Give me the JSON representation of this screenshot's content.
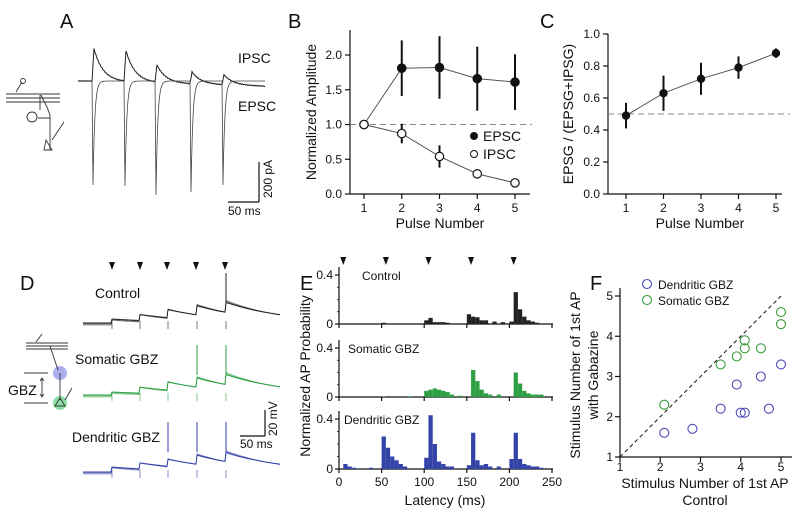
{
  "panels": {
    "A": "A",
    "B": "B",
    "C": "C",
    "D": "D",
    "E": "E",
    "F": "F"
  },
  "panel_a": {
    "ipsc_label": "IPSC",
    "epsc_label": "EPSC",
    "scale_y": "200 pA",
    "scale_x": "50 ms"
  },
  "panel_d": {
    "control_label": "Control",
    "somatic_label": "Somatic GBZ",
    "dendritic_label": "Dendritic GBZ",
    "gbz_label": "GBZ",
    "scale_y": "20 mV",
    "scale_x": "50 ms"
  },
  "colors": {
    "control": "#222222",
    "somatic": "#2ea043",
    "dendritic": "#3343a8",
    "f_dendritic": "#4b4bb8",
    "f_somatic": "#3c9c3c"
  },
  "chart_data": [
    {
      "id": "B",
      "type": "line",
      "xlabel": "Pulse Number",
      "ylabel": "Normalized Amplitude",
      "x": [
        1,
        2,
        3,
        4,
        5
      ],
      "xticks": [
        "1",
        "2",
        "3",
        "4",
        "5"
      ],
      "ylim": [
        0,
        2.3
      ],
      "yticks": [
        "0.0",
        "0.5",
        "1.0",
        "1.5",
        "2.0"
      ],
      "reference_line": 1.0,
      "legend_position": "right",
      "series": [
        {
          "name": "EPSC",
          "marker": "filled",
          "values": [
            1.0,
            1.81,
            1.82,
            1.66,
            1.61
          ],
          "errors": [
            0,
            0.4,
            0.45,
            0.46,
            0.4
          ]
        },
        {
          "name": "IPSC",
          "marker": "open",
          "values": [
            1.0,
            0.87,
            0.54,
            0.29,
            0.16
          ],
          "errors": [
            0,
            0.14,
            0.16,
            0.06,
            0.02
          ]
        }
      ]
    },
    {
      "id": "C",
      "type": "line",
      "xlabel": "Pulse Number",
      "ylabel": "EPSG / (EPSG+IPSG)",
      "x": [
        1,
        2,
        3,
        4,
        5
      ],
      "xticks": [
        "1",
        "2",
        "3",
        "4",
        "5"
      ],
      "ylim": [
        0,
        1.0
      ],
      "yticks": [
        "0.0",
        "0.2",
        "0.4",
        "0.6",
        "0.8",
        "1.0"
      ],
      "reference_line": 0.5,
      "series": [
        {
          "name": "ratio",
          "values": [
            0.49,
            0.63,
            0.72,
            0.79,
            0.88
          ],
          "errors": [
            0.08,
            0.11,
            0.1,
            0.07,
            0.03
          ]
        }
      ]
    },
    {
      "id": "E",
      "type": "bar",
      "xlabel": "Latency (ms)",
      "ylabel": "Normalized AP Probability",
      "xlim": [
        0,
        250
      ],
      "bin_ms": 5,
      "xticks": [
        "0",
        "50",
        "100",
        "150",
        "200",
        "250"
      ],
      "ylim": [
        0,
        0.45
      ],
      "yticks": [
        "0",
        "0.4"
      ],
      "stimulus_times_ms": [
        5,
        55,
        105,
        155,
        205
      ],
      "series": [
        {
          "name": "Control",
          "values": [
            0,
            0,
            0,
            0,
            0,
            0,
            0,
            0,
            0,
            0,
            0.01,
            0,
            0,
            0,
            0,
            0,
            0,
            0,
            0,
            0,
            0.03,
            0.05,
            0.015,
            0.015,
            0.015,
            0.01,
            0,
            0,
            0,
            0,
            0.08,
            0.06,
            0.055,
            0.03,
            0.03,
            0,
            0.02,
            0,
            0.015,
            0,
            0.02,
            0.26,
            0.12,
            0.06,
            0.03,
            0.02,
            0.01,
            0,
            0,
            0
          ]
        },
        {
          "name": "Somatic GBZ",
          "values": [
            0,
            0,
            0,
            0,
            0,
            0,
            0,
            0,
            0,
            0,
            0.005,
            0,
            0,
            0,
            0,
            0,
            0.005,
            0,
            0,
            0,
            0.05,
            0.06,
            0.07,
            0.06,
            0.05,
            0.04,
            0.02,
            0,
            0.01,
            0,
            0,
            0.22,
            0.13,
            0.06,
            0.03,
            0.02,
            0,
            0.02,
            0,
            0,
            0,
            0.2,
            0.11,
            0.05,
            0.03,
            0.02,
            0.02,
            0.02,
            0,
            0
          ]
        },
        {
          "name": "Dendritic GBZ",
          "values": [
            0,
            0.04,
            0.02,
            0.01,
            0.005,
            0,
            0,
            0.01,
            0,
            0,
            0.26,
            0.17,
            0.1,
            0.07,
            0.04,
            0.02,
            0,
            0,
            0,
            0,
            0.09,
            0.43,
            0.2,
            0.06,
            0.04,
            0.02,
            0.02,
            0,
            0,
            0,
            0.03,
            0.29,
            0.07,
            0.03,
            0.04,
            0.02,
            0,
            0.02,
            0,
            0,
            0.08,
            0.29,
            0.08,
            0.04,
            0.03,
            0.02,
            0.02,
            0.01,
            0,
            0
          ]
        }
      ]
    },
    {
      "id": "F",
      "type": "scatter",
      "xlabel": "Stimulus Number of 1st AP",
      "xlabel2": "Control",
      "ylabel": "Stimulus Number of 1st AP",
      "ylabel2": "with Gabazine",
      "xlim": [
        1,
        5.3
      ],
      "ylim": [
        1,
        5.3
      ],
      "xticks": [
        "1",
        "2",
        "3",
        "4",
        "5"
      ],
      "yticks": [
        "1",
        "2",
        "3",
        "4",
        "5"
      ],
      "legend_position": "top-left",
      "unity_line": true,
      "series": [
        {
          "name": "Dendritic GBZ",
          "points": [
            [
              2.1,
              1.6
            ],
            [
              2.8,
              1.7
            ],
            [
              3.5,
              2.2
            ],
            [
              3.9,
              2.8
            ],
            [
              4.0,
              2.1
            ],
            [
              4.1,
              2.1
            ],
            [
              4.5,
              3.0
            ],
            [
              4.7,
              2.2
            ],
            [
              5.0,
              3.3
            ]
          ]
        },
        {
          "name": "Somatic GBZ",
          "points": [
            [
              2.1,
              2.3
            ],
            [
              3.5,
              3.3
            ],
            [
              3.9,
              3.5
            ],
            [
              4.1,
              3.7
            ],
            [
              4.1,
              3.9
            ],
            [
              4.5,
              3.7
            ],
            [
              5.0,
              4.3
            ],
            [
              5.0,
              4.6
            ]
          ]
        }
      ]
    }
  ]
}
